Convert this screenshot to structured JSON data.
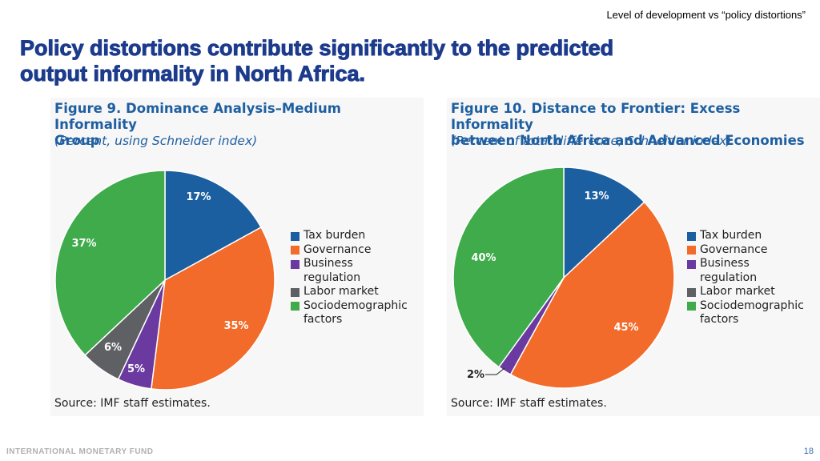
{
  "header": {
    "topnote": "Level of development vs “policy distortions”",
    "title_line1": "Policy distortions contribute significantly to the predicted",
    "title_line2": "output informality in North Africa."
  },
  "colors": {
    "tax_burden": "#1c5fa0",
    "governance": "#f26b2a",
    "business_regulation": "#6a3aa0",
    "labor_market": "#5e6064",
    "sociodemographic": "#3fab4a",
    "title_blue": "#1d3b8c",
    "figure_blue": "#1f5fa0"
  },
  "chart_data": [
    {
      "type": "pie",
      "title": "Figure 9. Dominance Analysis–Medium Informality Group",
      "title_line1": "Figure 9. Dominance Analysis–Medium Informality",
      "title_line2": "Group",
      "subtitle": "(Percent, using Schneider index)",
      "categories": [
        "Tax burden",
        "Governance",
        "Business regulation",
        "Labor market",
        "Sociodemographic factors"
      ],
      "values": [
        17,
        35,
        5,
        6,
        37
      ],
      "value_labels": [
        "17%",
        "35%",
        "5%",
        "6%",
        "37%"
      ],
      "legend": {
        "placement": "right",
        "items": [
          {
            "line1": "Tax burden"
          },
          {
            "line1": "Governance"
          },
          {
            "line1": "Business",
            "line2": "regulation"
          },
          {
            "line1": "Labor market"
          },
          {
            "line1": "Sociodemographic",
            "line2": "factors"
          }
        ]
      },
      "source": "Source: IMF staff estimates."
    },
    {
      "type": "pie",
      "title": "Figure 10. Distance to Frontier: Excess Informality between North Africa and Advanced Economies",
      "title_line1": "Figure 10. Distance to Frontier: Excess Informality",
      "title_line2": "between North Africa and Advanced Economies",
      "subtitle": "(Percent of total difference, Schneider index)",
      "categories": [
        "Tax burden",
        "Governance",
        "Business regulation",
        "Labor market",
        "Sociodemographic factors"
      ],
      "values": [
        13,
        45,
        2,
        0,
        40
      ],
      "value_labels": [
        "13%",
        "45%",
        "2%",
        "",
        "40%"
      ],
      "legend": {
        "placement": "right",
        "items": [
          {
            "line1": "Tax burden"
          },
          {
            "line1": "Governance"
          },
          {
            "line1": "Business",
            "line2": "regulation"
          },
          {
            "line1": "Labor market"
          },
          {
            "line1": "Sociodemographic",
            "line2": "factors"
          }
        ]
      },
      "source": "Source: IMF staff estimates."
    }
  ],
  "footer": {
    "org": "INTERNATIONAL MONETARY FUND",
    "page_number": "18"
  }
}
